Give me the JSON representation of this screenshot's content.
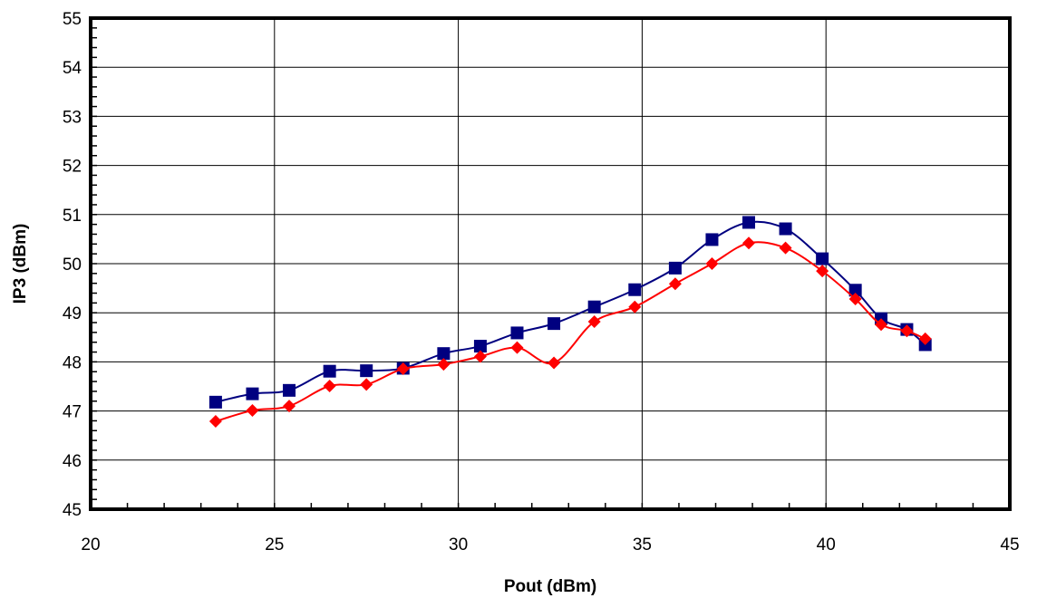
{
  "chart_data": {
    "type": "line",
    "title": "",
    "xlabel": "Pout (dBm)",
    "ylabel": "IP3 (dBm)",
    "xlim": [
      20,
      45
    ],
    "ylim": [
      45,
      55
    ],
    "x_ticks": [
      20,
      25,
      30,
      35,
      40,
      45
    ],
    "y_ticks": [
      45,
      46,
      47,
      48,
      49,
      50,
      51,
      52,
      53,
      54,
      55
    ],
    "grid": true,
    "legend": "none",
    "series": [
      {
        "color": "#000080",
        "marker": "square",
        "x": [
          23.4,
          24.4,
          25.4,
          26.5,
          27.5,
          28.5,
          29.6,
          30.6,
          31.6,
          32.6,
          33.7,
          34.8,
          35.9,
          36.9,
          37.9,
          38.9,
          39.9,
          40.8,
          41.5,
          42.2,
          42.7
        ],
        "y": [
          47.18,
          47.35,
          47.42,
          47.81,
          47.82,
          47.87,
          48.17,
          48.32,
          48.59,
          48.78,
          49.12,
          49.47,
          49.91,
          50.49,
          50.84,
          50.71,
          50.1,
          49.46,
          48.88,
          48.66,
          48.35
        ]
      },
      {
        "color": "#ff0000",
        "marker": "diamond",
        "x": [
          23.4,
          24.4,
          25.4,
          26.5,
          27.5,
          28.5,
          29.6,
          30.6,
          31.6,
          32.6,
          33.7,
          34.8,
          35.9,
          36.9,
          37.9,
          38.9,
          39.9,
          40.8,
          41.5,
          42.2,
          42.7
        ],
        "y": [
          46.79,
          47.01,
          47.1,
          47.51,
          47.54,
          47.86,
          47.95,
          48.11,
          48.29,
          47.98,
          48.82,
          49.12,
          49.59,
          50.0,
          50.42,
          50.32,
          49.85,
          49.28,
          48.76,
          48.63,
          48.47
        ]
      }
    ]
  }
}
